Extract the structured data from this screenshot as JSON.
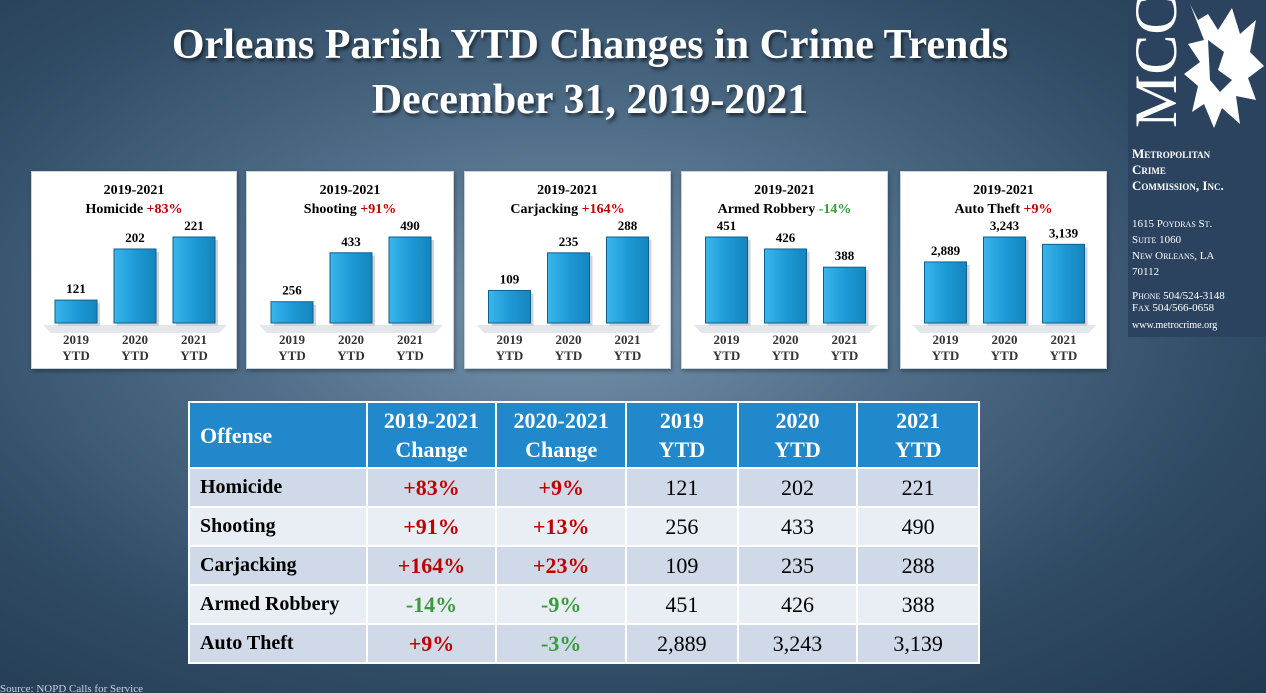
{
  "title_line1": "Orleans Parish YTD Changes in Crime Trends",
  "title_line2": "December 31, 2019-2021",
  "chart_data": [
    {
      "type": "bar",
      "title": "2019-2021",
      "offense": "Homicide",
      "change": "+83%",
      "direction": "up",
      "categories": [
        "2019",
        "2020",
        "2021"
      ],
      "category_sub": "YTD",
      "values": [
        121,
        202,
        221
      ],
      "value_labels": [
        "121",
        "202",
        "221"
      ]
    },
    {
      "type": "bar",
      "title": "2019-2021",
      "offense": "Shooting",
      "change": "+91%",
      "direction": "up",
      "categories": [
        "2019",
        "2020",
        "2021"
      ],
      "category_sub": "YTD",
      "values": [
        256,
        433,
        490
      ],
      "value_labels": [
        "256",
        "433",
        "490"
      ]
    },
    {
      "type": "bar",
      "title": "2019-2021",
      "offense": "Carjacking",
      "change": "+164%",
      "direction": "up",
      "categories": [
        "2019",
        "2020",
        "2021"
      ],
      "category_sub": "YTD",
      "values": [
        109,
        235,
        288
      ],
      "value_labels": [
        "109",
        "235",
        "288"
      ]
    },
    {
      "type": "bar",
      "title": "2019-2021",
      "offense": "Armed Robbery",
      "change": "-14%",
      "direction": "down",
      "categories": [
        "2019",
        "2020",
        "2021"
      ],
      "category_sub": "YTD",
      "values": [
        451,
        426,
        388
      ],
      "value_labels": [
        "451",
        "426",
        "388"
      ]
    },
    {
      "type": "bar",
      "title": "2019-2021",
      "offense": "Auto Theft",
      "change": "+9%",
      "direction": "up",
      "categories": [
        "2019",
        "2020",
        "2021"
      ],
      "category_sub": "YTD",
      "values": [
        2889,
        3243,
        3139
      ],
      "value_labels": [
        "2,889",
        "3,243",
        "3,139"
      ]
    }
  ],
  "colors": {
    "bar": "#1e9ad6",
    "increase": "#c00000",
    "decrease": "#3a9b3a",
    "header": "#2288cc"
  },
  "table": {
    "headers": {
      "offense": "Offense",
      "chg1_l1": "2019-2021",
      "chg1_l2": "Change",
      "chg2_l1": "2020-2021",
      "chg2_l2": "Change",
      "y19_l1": "2019",
      "y19_l2": "YTD",
      "y20_l1": "2020",
      "y20_l2": "YTD",
      "y21_l1": "2021",
      "y21_l2": "YTD"
    },
    "rows": [
      {
        "offense": "Homicide",
        "chg1": "+83%",
        "chg1_dir": "up",
        "chg2": "+9%",
        "chg2_dir": "up",
        "y2019": "121",
        "y2020": "202",
        "y2021": "221"
      },
      {
        "offense": "Shooting",
        "chg1": "+91%",
        "chg1_dir": "up",
        "chg2": "+13%",
        "chg2_dir": "up",
        "y2019": "256",
        "y2020": "433",
        "y2021": "490"
      },
      {
        "offense": "Carjacking",
        "chg1": "+164%",
        "chg1_dir": "up",
        "chg2": "+23%",
        "chg2_dir": "up",
        "y2019": "109",
        "y2020": "235",
        "y2021": "288"
      },
      {
        "offense": "Armed Robbery",
        "chg1": "-14%",
        "chg1_dir": "down",
        "chg2": "-9%",
        "chg2_dir": "down",
        "y2019": "451",
        "y2020": "426",
        "y2021": "388"
      },
      {
        "offense": "Auto Theft",
        "chg1": "+9%",
        "chg1_dir": "up",
        "chg2": "-3%",
        "chg2_dir": "down",
        "y2019": "2,889",
        "y2020": "3,243",
        "y2021": "3,139"
      }
    ]
  },
  "brand": {
    "logo_text": "MCC",
    "name_line1": "Metropolitan",
    "name_line2": "Crime",
    "name_line3": "Commission, Inc.",
    "addr_line1": "1615 Poydras St.",
    "addr_line2": "Suite 1060",
    "addr_line3": "New Orleans, LA",
    "addr_line4": "70112",
    "phone": "Phone 504/524-3148",
    "fax": "Fax 504/566-0658",
    "website": "www.metrocrime.org"
  },
  "source": "Source: NOPD Calls for Service"
}
